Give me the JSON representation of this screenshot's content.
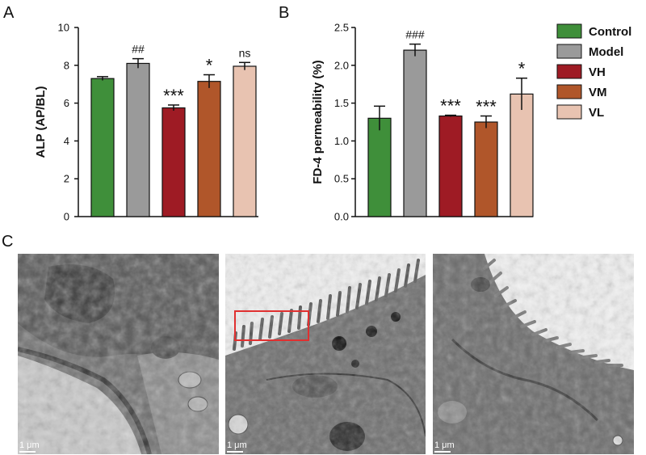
{
  "panel_labels": {
    "a": "A",
    "b": "B",
    "c": "C"
  },
  "colors": {
    "Control": "#3f8f3a",
    "Model": "#9a9a9a",
    "VH": "#9e1b24",
    "VM": "#b0562a",
    "VL": "#e8c3b1"
  },
  "legend": [
    "Control",
    "Model",
    "VH",
    "VM",
    "VL"
  ],
  "chart_data": [
    {
      "panel": "A",
      "type": "bar",
      "ylabel": "ALP (AP/BL)",
      "ylim": [
        0,
        10
      ],
      "yticks": [
        "0",
        "2",
        "4",
        "6",
        "8",
        "10"
      ],
      "categories": [
        "Control",
        "Model",
        "VH",
        "VM",
        "VL"
      ],
      "values": [
        7.3,
        8.1,
        5.75,
        7.15,
        7.95
      ],
      "errors": [
        0.1,
        0.25,
        0.15,
        0.35,
        0.2
      ],
      "annotations": [
        "",
        "##",
        "***",
        "*",
        "ns"
      ]
    },
    {
      "panel": "B",
      "type": "bar",
      "ylabel": "FD-4 permeability (%)",
      "ylim": [
        0,
        2.5
      ],
      "yticks": [
        "0.0",
        "0.5",
        "1.0",
        "1.5",
        "2.0",
        "2.5"
      ],
      "categories": [
        "Control",
        "Model",
        "VH",
        "VM",
        "VL"
      ],
      "values": [
        1.3,
        2.2,
        1.33,
        1.25,
        1.62
      ],
      "errors": [
        0.16,
        0.08,
        0.01,
        0.08,
        0.21
      ],
      "annotations": [
        "",
        "###",
        "***",
        "***",
        "*"
      ]
    }
  ],
  "micrographs": [
    {
      "scale_label": "1 μm"
    },
    {
      "scale_label": "1 μm"
    },
    {
      "scale_label": "1 μm"
    }
  ]
}
